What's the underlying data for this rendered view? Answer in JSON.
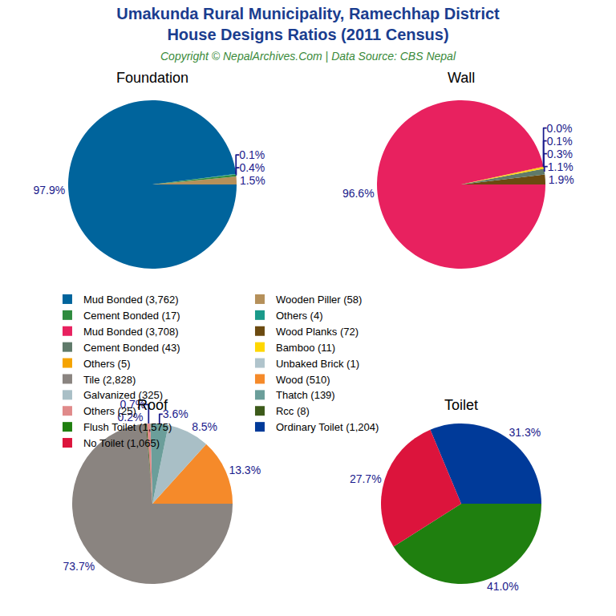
{
  "title": [
    "Umakunda Rural Municipality, Ramechhap District",
    "House Designs Ratios (2011 Census)"
  ],
  "subtitle": "Copyright © NepalArchives.Com | Data Source: CBS Nepal",
  "chart_data": [
    {
      "type": "pie",
      "title": "Foundation",
      "categories": [
        "Mud Bonded (3,762)",
        "Wooden Piller (58)",
        "Cement Bonded (17)",
        "Others (4)"
      ],
      "values": [
        97.9,
        1.5,
        0.4,
        0.1
      ],
      "value_labels": [
        "97.9%",
        "1.5%",
        "0.4%",
        "0.1%"
      ],
      "colors": [
        "#00649c",
        "#b5905a",
        "#2e8b3e",
        "#1a9a8a"
      ],
      "data_labels": true
    },
    {
      "type": "pie",
      "title": "Wall",
      "categories": [
        "Mud Bonded (3,708)",
        "Wood Planks (72)",
        "Cement Bonded (43)",
        "Bamboo (11)",
        "Others (5)",
        "Unbaked Brick (1)"
      ],
      "values": [
        96.6,
        1.9,
        1.1,
        0.3,
        0.1,
        0.0
      ],
      "value_labels": [
        "96.6%",
        "1.9%",
        "1.1%",
        "0.3%",
        "0.1%",
        "0.0%"
      ],
      "colors": [
        "#e8215f",
        "#6b4a10",
        "#5f7a6a",
        "#ffd700",
        "#f5a300",
        "#b0c4cc"
      ],
      "data_labels": true
    },
    {
      "type": "pie",
      "title": "Roof",
      "categories": [
        "Tile (2,828)",
        "Wood (510)",
        "Galvanized (325)",
        "Thatch (139)",
        "Others (25)",
        "Rcc (8)"
      ],
      "values": [
        73.7,
        13.3,
        8.5,
        3.6,
        0.7,
        0.2
      ],
      "value_labels": [
        "73.7%",
        "13.3%",
        "8.5%",
        "3.6%",
        "0.7%",
        "0.2%"
      ],
      "colors": [
        "#8a8480",
        "#f58a2a",
        "#a9bfc6",
        "#6b9e9a",
        "#e08a8a",
        "#3d5a1a"
      ],
      "data_labels": true
    },
    {
      "type": "pie",
      "title": "Toilet",
      "categories": [
        "Flush Toilet (1,575)",
        "Ordinary Toilet (1,204)",
        "No Toilet (1,065)"
      ],
      "values": [
        41.0,
        31.3,
        27.7
      ],
      "value_labels": [
        "41.0%",
        "31.3%",
        "27.7%"
      ],
      "colors": [
        "#1f7f0f",
        "#003a99",
        "#dc143c"
      ],
      "data_labels": true
    }
  ]
}
